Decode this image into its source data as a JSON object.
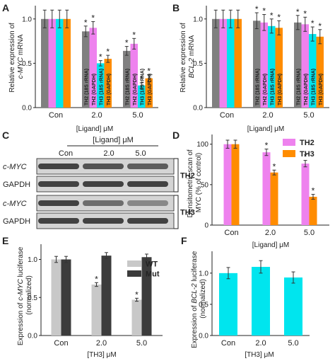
{
  "colors": {
    "grey": "#808080",
    "magenta": "#ee82ee",
    "cyan": "#00e5ee",
    "orange": "#ff8c00",
    "light_grey": "#c8c8c8",
    "dark_grey": "#3c3c3c",
    "blot_band": "#3a3a3a",
    "blot_bg": "#d4d4d4"
  },
  "panels": {
    "A": {
      "letter": "A"
    },
    "B": {
      "letter": "B"
    },
    "C": {
      "letter": "C"
    },
    "D": {
      "letter": "D"
    },
    "E": {
      "letter": "E"
    },
    "F": {
      "letter": "F"
    }
  },
  "chart_data": [
    {
      "panel": "A",
      "type": "bar",
      "categories": [
        "Con",
        "2.0",
        "5.0"
      ],
      "xlabel": "[Ligand] μM",
      "ylabel_prefix": "Relative expression of",
      "ylabel_gene": "c-MYC",
      "ylabel_suffix": " mRNA",
      "ylim": [
        0,
        1.15
      ],
      "yticks": [
        "0.0",
        "0.5",
        "1.0"
      ],
      "series": [
        {
          "name": "TH2 (18S rRNA)",
          "color": "grey",
          "values": [
            1.0,
            0.86,
            0.64
          ],
          "errors": [
            0.1,
            0.06,
            0.05
          ],
          "star": [
            false,
            true,
            true
          ]
        },
        {
          "name": "TH2 (GAPDH)",
          "color": "magenta",
          "values": [
            1.0,
            0.9,
            0.72
          ],
          "errors": [
            0.1,
            0.07,
            0.06
          ],
          "star": [
            false,
            true,
            true
          ]
        },
        {
          "name": "TH3 (18S rRNA)",
          "color": "cyan",
          "values": [
            1.0,
            0.5,
            0.25
          ],
          "errors": [
            0.1,
            0.03,
            0.03
          ],
          "star": [
            false,
            true,
            true
          ]
        },
        {
          "name": "TH3 (GAPDH)",
          "color": "orange",
          "values": [
            1.0,
            0.55,
            0.33
          ],
          "errors": [
            0.1,
            0.04,
            0.04
          ],
          "star": [
            false,
            true,
            true
          ]
        }
      ]
    },
    {
      "panel": "B",
      "type": "bar",
      "categories": [
        "Con",
        "2.0",
        "5.0"
      ],
      "xlabel": "[Ligand] μM",
      "ylabel_prefix": "Relative expression of",
      "ylabel_gene": "BCL-2",
      "ylabel_suffix": " mRNA",
      "ylim": [
        0,
        1.15
      ],
      "yticks": [
        "0.0",
        "0.5",
        "1.0"
      ],
      "series": [
        {
          "name": "TH2 (18S rRNA)",
          "color": "grey",
          "values": [
            1.0,
            0.98,
            0.96
          ],
          "errors": [
            0.1,
            0.09,
            0.08
          ],
          "star": [
            false,
            true,
            true
          ]
        },
        {
          "name": "TH2 (GAPDH)",
          "color": "magenta",
          "values": [
            1.0,
            0.96,
            0.94
          ],
          "errors": [
            0.1,
            0.09,
            0.08
          ],
          "star": [
            false,
            true,
            true
          ]
        },
        {
          "name": "TH3 (18S rRNA)",
          "color": "cyan",
          "values": [
            1.0,
            0.92,
            0.83
          ],
          "errors": [
            0.1,
            0.08,
            0.08
          ],
          "star": [
            false,
            true,
            true
          ]
        },
        {
          "name": "TH3 (GAPDH)",
          "color": "orange",
          "values": [
            1.0,
            0.9,
            0.8
          ],
          "errors": [
            0.1,
            0.08,
            0.08
          ],
          "star": [
            false,
            true,
            true
          ]
        }
      ]
    },
    {
      "panel": "D",
      "type": "bar",
      "categories": [
        "Con",
        "2.0",
        "5.0"
      ],
      "xlabel": "[Ligand] μM",
      "ylabel_line1": "Densitometric scan of",
      "ylabel_line2": "MYC (% of control)",
      "ylim": [
        0,
        112
      ],
      "yticks": [
        "0",
        "50",
        "100"
      ],
      "legend": "top-right",
      "series": [
        {
          "name": "TH2",
          "color": "magenta",
          "values": [
            100,
            90,
            76
          ],
          "errors": [
            5,
            4,
            4
          ],
          "star": [
            false,
            true,
            true
          ]
        },
        {
          "name": "TH3",
          "color": "orange",
          "values": [
            100,
            65,
            35
          ],
          "errors": [
            5,
            3,
            3
          ],
          "star": [
            false,
            true,
            true
          ]
        }
      ]
    },
    {
      "panel": "E",
      "type": "bar",
      "categories": [
        "Con",
        "2.0",
        "5.0"
      ],
      "xlabel": "[TH3] μM",
      "ylabel_prefix": "Expression of",
      "ylabel_gene": "c-MYC",
      "ylabel_suffix": " luciferase",
      "ylabel_line2": "(normalized)",
      "ylim": [
        0,
        1.2
      ],
      "yticks": [
        "0.0",
        "0.5",
        "1.0"
      ],
      "legend": "top-right",
      "series": [
        {
          "name": "WT",
          "color": "light_grey",
          "values": [
            1.0,
            0.67,
            0.47
          ],
          "errors": [
            0.04,
            0.025,
            0.02
          ],
          "star": [
            false,
            true,
            true
          ]
        },
        {
          "name": "Mut",
          "color": "dark_grey",
          "values": [
            1.0,
            1.05,
            1.03
          ],
          "errors": [
            0.04,
            0.04,
            0.04
          ],
          "star": [
            false,
            false,
            false
          ]
        }
      ]
    },
    {
      "panel": "F",
      "type": "bar",
      "categories": [
        "Con",
        "2.0",
        "5.0"
      ],
      "xlabel": "[TH3] μM",
      "ylabel_prefix": "Expression of",
      "ylabel_gene": "BCL-2",
      "ylabel_suffix": " luciferase",
      "ylabel_line2": "(normalized)",
      "ylim": [
        0,
        1.35
      ],
      "yticks": [
        "0.0",
        "0.5",
        "1.0"
      ],
      "series": [
        {
          "name": "",
          "color": "cyan",
          "values": [
            1.0,
            1.1,
            0.93
          ],
          "errors": [
            0.09,
            0.1,
            0.09
          ],
          "star": [
            false,
            false,
            false
          ]
        }
      ]
    }
  ],
  "blot": {
    "title": "[Ligand] μM",
    "lanes": [
      "Con",
      "2.0",
      "5.0"
    ],
    "rows": [
      {
        "label_gene": "c-MYC",
        "intensity": [
          1.0,
          0.85,
          0.75
        ]
      },
      {
        "label_gene": "GAPDH",
        "intensity": [
          1.0,
          1.0,
          1.0
        ]
      },
      {
        "label_gene": "c-MYC",
        "intensity": [
          1.0,
          0.6,
          0.35
        ]
      },
      {
        "label_gene": "GAPDH",
        "intensity": [
          1.0,
          1.0,
          1.0
        ]
      }
    ],
    "groups": [
      "TH2",
      "TH3"
    ]
  }
}
